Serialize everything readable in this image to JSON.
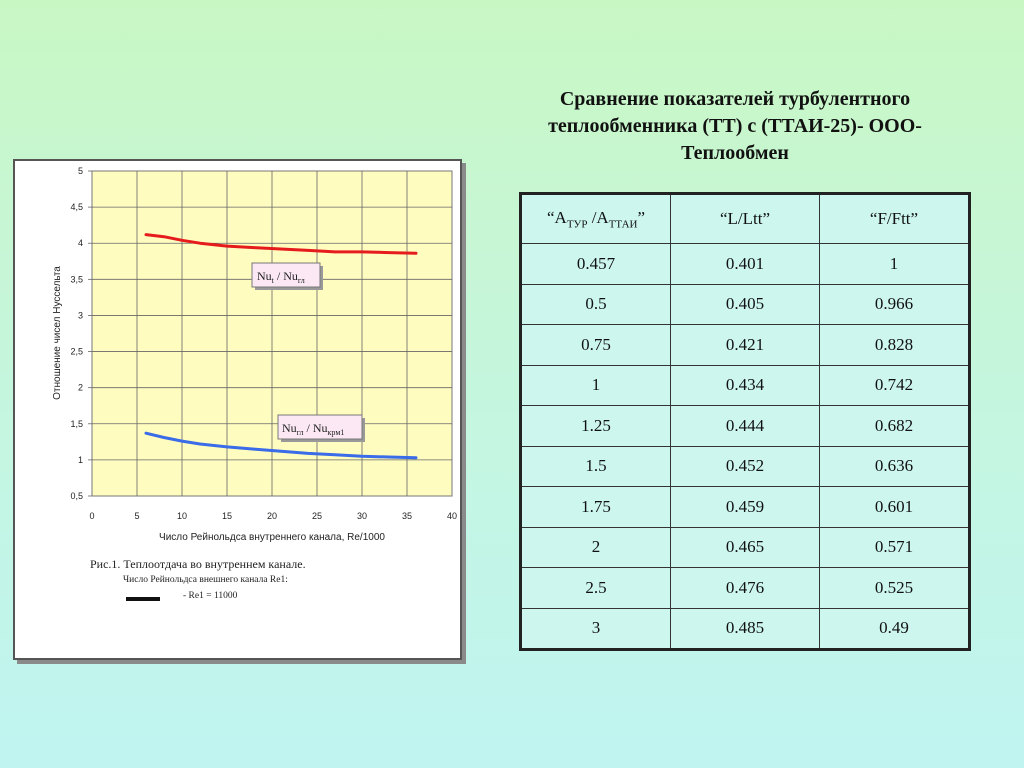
{
  "heading": {
    "line1": "Сравнение показателей турбулентного",
    "line2": "теплообменника (ТТ) с (ТТАИ-25)- ООО-",
    "line3": "Теплообмен"
  },
  "figure": {
    "caption": "Рис.1. Теплоотдача во внутреннем канале.",
    "subcaption": "Число Рейнольдса внешнего канала Re1:",
    "legend_entry": "- Re1 = 11000",
    "label_upper": {
      "main1": "Nu",
      "sub1": "t",
      "mid": " / Nu",
      "sub2": "гл"
    },
    "label_lower": {
      "main1": "Nu",
      "sub1": "гл",
      "mid": " / Nu",
      "sub2": "крм1"
    }
  },
  "chart_data": {
    "type": "line",
    "xlabel": "Число Рейнольдса внутреннего канала, Re/1000",
    "ylabel": "Отношение чисел Нуссельта",
    "xlim": [
      0,
      40
    ],
    "ylim": [
      0.5,
      5
    ],
    "x_ticks": [
      "0",
      "5",
      "10",
      "15",
      "20",
      "25",
      "30",
      "35",
      "40"
    ],
    "y_ticks": [
      "0,5",
      "1",
      "1,5",
      "2",
      "2,5",
      "3",
      "3,5",
      "4",
      "4,5",
      "5"
    ],
    "grid": true,
    "series": [
      {
        "color": "#e61c1c",
        "x": [
          6,
          8,
          10,
          12,
          15,
          18,
          21,
          24,
          27,
          30,
          33,
          36
        ],
        "y": [
          4.12,
          4.09,
          4.04,
          4.0,
          3.96,
          3.94,
          3.92,
          3.9,
          3.88,
          3.88,
          3.87,
          3.86
        ]
      },
      {
        "color": "#3a6be8",
        "x": [
          6,
          8,
          10,
          12,
          15,
          18,
          21,
          24,
          27,
          30,
          33,
          36
        ],
        "y": [
          1.37,
          1.31,
          1.26,
          1.22,
          1.18,
          1.15,
          1.12,
          1.09,
          1.07,
          1.05,
          1.04,
          1.03
        ]
      }
    ]
  },
  "table": {
    "headers": [
      {
        "pre": "“А",
        "sub1": "ТУР",
        "mid": " /А",
        "sub2": "ТТАИ",
        "post": "”"
      },
      {
        "text": "“L/Ltt”"
      },
      {
        "text": "“F/Ftt”"
      }
    ],
    "rows": [
      [
        "0.457",
        "0.401",
        "1"
      ],
      [
        "0.5",
        "0.405",
        "0.966"
      ],
      [
        "0.75",
        "0.421",
        "0.828"
      ],
      [
        "1",
        "0.434",
        "0.742"
      ],
      [
        "1.25",
        "0.444",
        "0.682"
      ],
      [
        "1.5",
        "0.452",
        "0.636"
      ],
      [
        "1.75",
        "0.459",
        "0.601"
      ],
      [
        "2",
        "0.465",
        "0.571"
      ],
      [
        "2.5",
        "0.476",
        "0.525"
      ],
      [
        "3",
        "0.485",
        "0.49"
      ]
    ]
  }
}
